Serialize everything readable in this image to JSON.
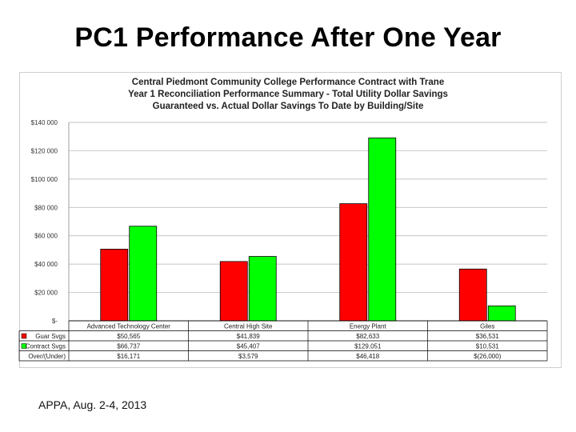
{
  "slide": {
    "title": "PC1 Performance After One Year",
    "footer": "APPA, Aug. 2-4, 2013"
  },
  "colors": {
    "guaranteed": "#ff0000",
    "actual": "#00ff00",
    "grid": "#b0b0b0",
    "border": "#000000"
  },
  "chart_data": {
    "type": "bar",
    "title_lines": [
      "Central Piedmont Community College Performance Contract with Trane",
      "Year 1 Reconciliation Performance Summary - Total Utility Dollar Savings",
      "Guaranteed vs. Actual Dollar Savings To Date by Building/Site"
    ],
    "categories": [
      "Advanced Technology Center",
      "Central High Site",
      "Energy Plant",
      "Giles"
    ],
    "series": [
      {
        "name": "Guar Svgs",
        "values": [
          50565,
          41839,
          82633,
          36531
        ]
      },
      {
        "name": "Contract Svgs",
        "values": [
          66737,
          45407,
          129051,
          10531
        ]
      }
    ],
    "ylim": [
      0,
      140000
    ],
    "yticks": [
      0,
      20000,
      40000,
      60000,
      80000,
      100000,
      120000,
      140000
    ],
    "ytick_labels": [
      "$-",
      "$20 000",
      "$40 000",
      "$60 000",
      "$80 000",
      "$100 000",
      "$120 000",
      "$140 000"
    ],
    "grid": true,
    "legend": "data-table-below",
    "table": {
      "row_labels": [
        "Guar Svgs",
        "Contract Svgs",
        "Over/(Under)"
      ],
      "rows": [
        [
          "$50,565",
          "$41,839",
          "$82,633",
          "$36,531"
        ],
        [
          "$66,737",
          "$45,407",
          "$129,051",
          "$10,531"
        ],
        [
          "$16,171",
          "$3,579",
          "$46,418",
          "$(26,000)"
        ]
      ]
    }
  }
}
